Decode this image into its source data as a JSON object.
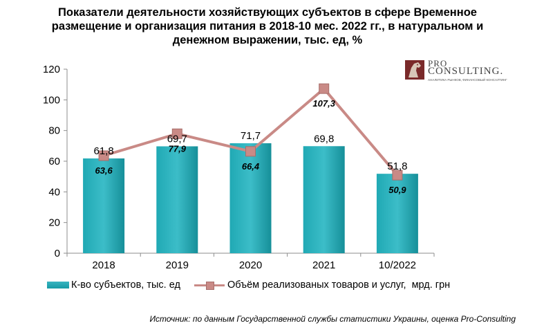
{
  "title_lines": [
    "Показатели деятельности хозяйствующих субъектов в сфере Временное",
    "размещение и организация питания в 2018-10 мес. 2022 гг., в натуральном и",
    "денежном выражении, тыс. ед, %"
  ],
  "logo": {
    "line1": "PRO",
    "line2": "CONSULTING.",
    "tagline": "АНАЛИТИКА РЫНКОВ, ФИНАНСОВЫЙ КОНСАЛТИНГ"
  },
  "source": "Источник: по данным Государственной службы статистики Украины, оценка Pro-Consulting",
  "colors": {
    "bar": "#1ba3ae",
    "line": "#c98a86",
    "marker_edge": "#a86e6a"
  },
  "chart_data": {
    "type": "bar",
    "categories": [
      "2018",
      "2019",
      "2020",
      "2021",
      "10/2022"
    ],
    "series": [
      {
        "name": "К-во субъектов, тыс. ед",
        "type": "bar",
        "values": [
          61.8,
          69.7,
          71.7,
          69.8,
          51.8
        ],
        "labels": [
          "61,8",
          "69,7",
          "71,7",
          "69,8",
          "51,8"
        ]
      },
      {
        "name": "Объём реализованых товаров и услуг,  мрд. грн",
        "type": "line",
        "values": [
          63.6,
          77.9,
          66.4,
          107.3,
          50.9
        ],
        "labels": [
          "63,6",
          "77,9",
          "66,4",
          "107,3",
          "50,9"
        ]
      }
    ],
    "yticks": [
      "0",
      "20",
      "40",
      "60",
      "80",
      "100",
      "120"
    ],
    "ylim": [
      0,
      120
    ],
    "grid": false,
    "legend": "bottom"
  }
}
